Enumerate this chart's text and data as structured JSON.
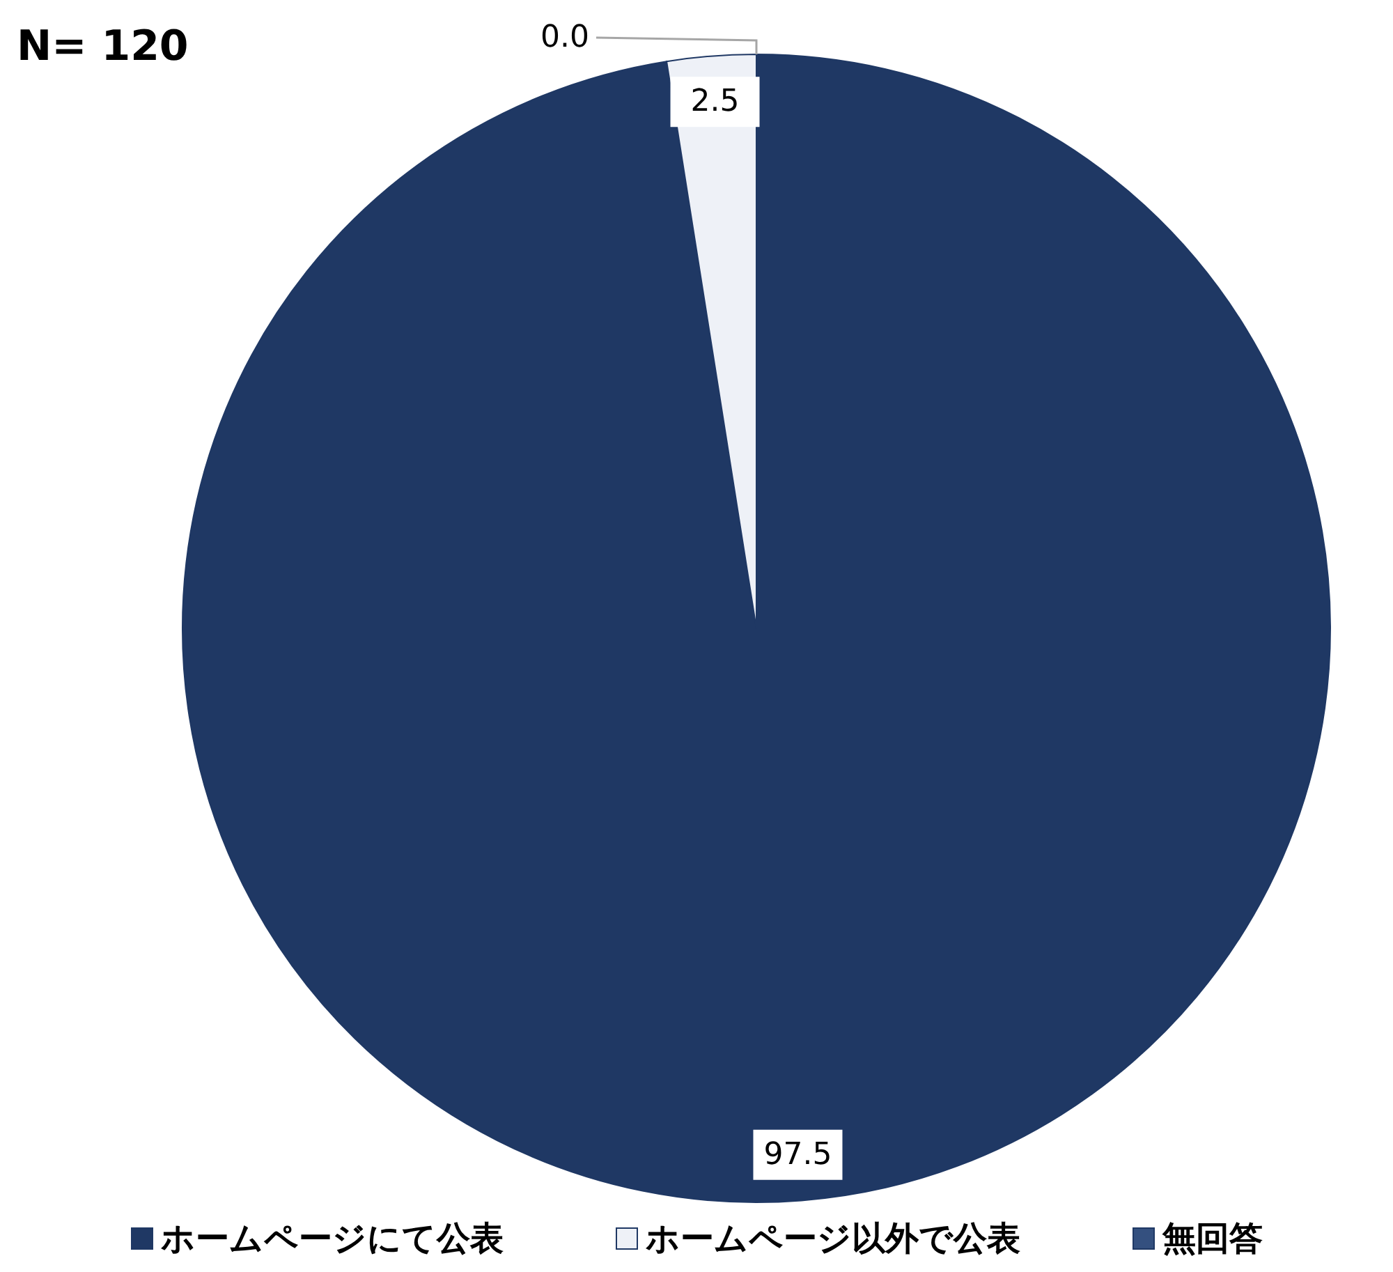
{
  "chart_data": {
    "type": "pie",
    "title": "N= 120",
    "categories": [
      "ホームページにて公表",
      "ホームページ以外で公表",
      "無回答"
    ],
    "values": [
      97.5,
      2.5,
      0.0
    ],
    "colors": [
      "#1f3864",
      "#eef1f7",
      "#34507f"
    ],
    "value_labels": [
      "97.5",
      "2.5",
      "0.0"
    ],
    "legend": "bottom"
  }
}
